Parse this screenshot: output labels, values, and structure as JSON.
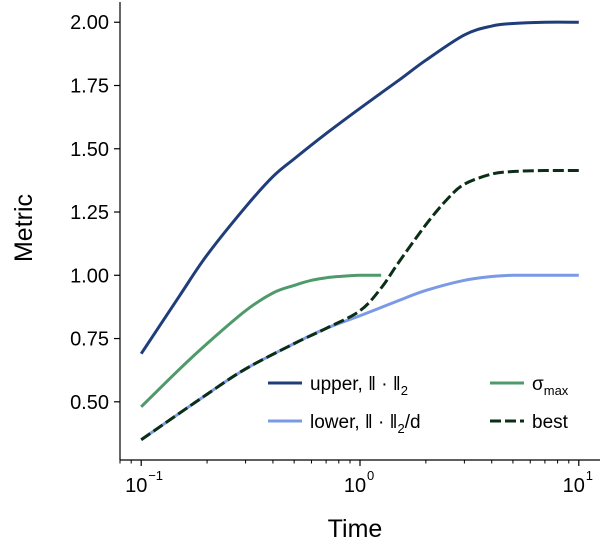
{
  "chart_data": {
    "type": "line",
    "xlabel": "Time",
    "ylabel": "Metric",
    "xscale": "log",
    "xlim": [
      0.08,
      12.5
    ],
    "ylim": [
      0.27,
      2.08
    ],
    "x_ticks": [
      {
        "value": 0.1,
        "base": "10",
        "exp": "−1"
      },
      {
        "value": 1,
        "base": "10",
        "exp": "0"
      },
      {
        "value": 10,
        "base": "10",
        "exp": "1"
      }
    ],
    "y_ticks": [
      {
        "value": 0.5,
        "label": "0.50"
      },
      {
        "value": 0.75,
        "label": "0.75"
      },
      {
        "value": 1.0,
        "label": "1.00"
      },
      {
        "value": 1.25,
        "label": "1.25"
      },
      {
        "value": 1.5,
        "label": "1.50"
      },
      {
        "value": 1.75,
        "label": "1.75"
      },
      {
        "value": 2.0,
        "label": "2.00"
      }
    ],
    "grid": false,
    "legend_position": "lower-right",
    "series": [
      {
        "key": "upper",
        "label_main": "upper, ‖ · ‖",
        "label_sub": "2",
        "label_tail": "",
        "color": "#1f3d7a",
        "dash": false,
        "x": [
          0.1,
          0.15,
          0.2,
          0.3,
          0.4,
          0.5,
          0.7,
          1.0,
          1.5,
          2.0,
          3.0,
          4.0,
          5.0,
          7.0,
          10.0
        ],
        "y": [
          0.69,
          0.92,
          1.08,
          1.27,
          1.39,
          1.46,
          1.56,
          1.66,
          1.77,
          1.85,
          1.95,
          1.985,
          1.995,
          2.0,
          2.0
        ]
      },
      {
        "key": "lower",
        "label_main": "lower, ‖ · ‖",
        "label_sub": "2",
        "label_tail": "/d",
        "color": "#7b9ae6",
        "dash": false,
        "x": [
          0.1,
          0.2,
          0.3,
          0.5,
          0.7,
          1.0,
          1.5,
          2.0,
          3.0,
          4.0,
          5.0,
          7.0,
          10.0
        ],
        "y": [
          0.35,
          0.53,
          0.63,
          0.73,
          0.79,
          0.84,
          0.9,
          0.94,
          0.98,
          0.995,
          1.0,
          1.0,
          1.0
        ]
      },
      {
        "key": "sigma",
        "label_main": "σ",
        "label_sub": "max",
        "label_tail": "",
        "color": "#4f9a6a",
        "dash": false,
        "x": [
          0.1,
          0.15,
          0.2,
          0.3,
          0.4,
          0.5,
          0.6,
          0.7,
          0.8,
          1.0,
          1.25
        ],
        "y": [
          0.48,
          0.63,
          0.73,
          0.86,
          0.93,
          0.96,
          0.98,
          0.99,
          0.995,
          1.0,
          1.0
        ]
      },
      {
        "key": "best",
        "label_main": "best",
        "label_sub": "",
        "label_tail": "",
        "color": "#0b2e17",
        "dash": true,
        "x": [
          0.1,
          0.2,
          0.3,
          0.5,
          0.7,
          1.0,
          1.25,
          1.5,
          2.0,
          2.5,
          3.0,
          4.0,
          5.0,
          7.0,
          10.0
        ],
        "y": [
          0.35,
          0.53,
          0.63,
          0.73,
          0.79,
          0.86,
          0.95,
          1.05,
          1.2,
          1.3,
          1.36,
          1.4,
          1.41,
          1.414,
          1.414
        ]
      }
    ]
  }
}
